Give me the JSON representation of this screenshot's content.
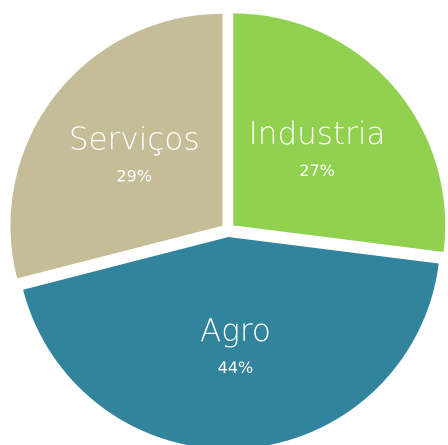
{
  "chart_data": {
    "type": "pie",
    "categories": [
      "Industria",
      "Agro",
      "Serviços"
    ],
    "values": [
      27,
      44,
      29
    ],
    "value_labels": [
      "27%",
      "44%",
      "29%"
    ],
    "colors": [
      "#92d050",
      "#31849b",
      "#c4bd97"
    ]
  }
}
